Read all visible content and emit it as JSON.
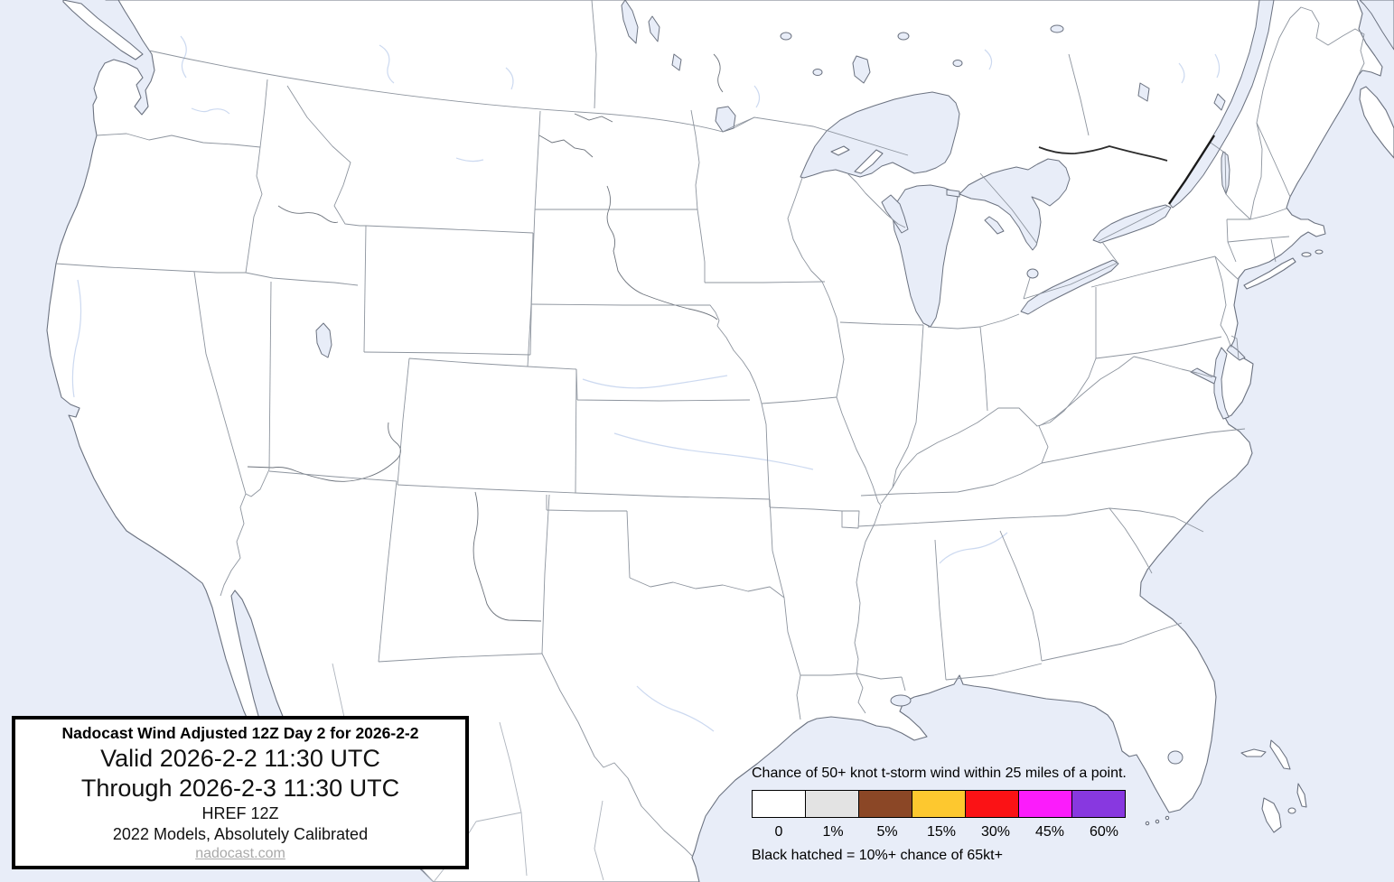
{
  "map": {
    "description": "CONUS basemap with state borders, no probability contours shaded",
    "water_color": "#e8edf8",
    "land_color": "#ffffff",
    "state_border_color": "#8d949e",
    "coast_color": "#6b7280",
    "national_border_color": "#1a1a1a"
  },
  "title_box": {
    "line1": "Nadocast Wind Adjusted 12Z Day 2 for 2026-2-2",
    "line2": "Valid 2026-2-2 11:30 UTC",
    "line3": "Through 2026-2-3 11:30 UTC",
    "line4": "HREF 12Z",
    "line5": "2022 Models, Absolutely Calibrated",
    "link": "nadocast.com"
  },
  "legend": {
    "title": "Chance of 50+ knot t-storm wind within 25 miles of a point.",
    "footnote": "Black hatched = 10%+ chance of 65kt+",
    "bins": [
      {
        "label": "0",
        "color": "#ffffff"
      },
      {
        "label": "1%",
        "color": "#e3e3e3"
      },
      {
        "label": "5%",
        "color": "#8b4726"
      },
      {
        "label": "15%",
        "color": "#fdc82f"
      },
      {
        "label": "30%",
        "color": "#fb1215"
      },
      {
        "label": "45%",
        "color": "#fb1cfb"
      },
      {
        "label": "60%",
        "color": "#8838e0"
      }
    ]
  }
}
